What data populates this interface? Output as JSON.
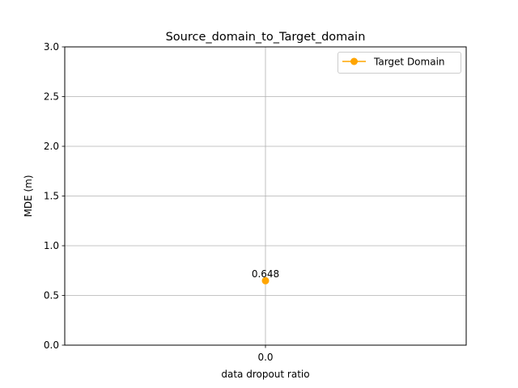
{
  "chart_data": {
    "type": "line",
    "title": "Source_domain_to_Target_domain",
    "xlabel": "data dropout ratio",
    "ylabel": "MDE (m)",
    "x_categories": [
      "0.0"
    ],
    "ylim": [
      0,
      3.0
    ],
    "y_ticks": [
      0.0,
      0.5,
      1.0,
      1.5,
      2.0,
      2.5,
      3.0
    ],
    "y_tick_labels": [
      "0.0",
      "0.5",
      "1.0",
      "1.5",
      "2.0",
      "2.5",
      "3.0"
    ],
    "grid": true,
    "legend_position": "top-right",
    "series": [
      {
        "name": "Target Domain",
        "color": "#ffa500",
        "marker": "circle",
        "values": [
          0.648
        ],
        "data_labels": [
          "0.648"
        ]
      }
    ]
  }
}
